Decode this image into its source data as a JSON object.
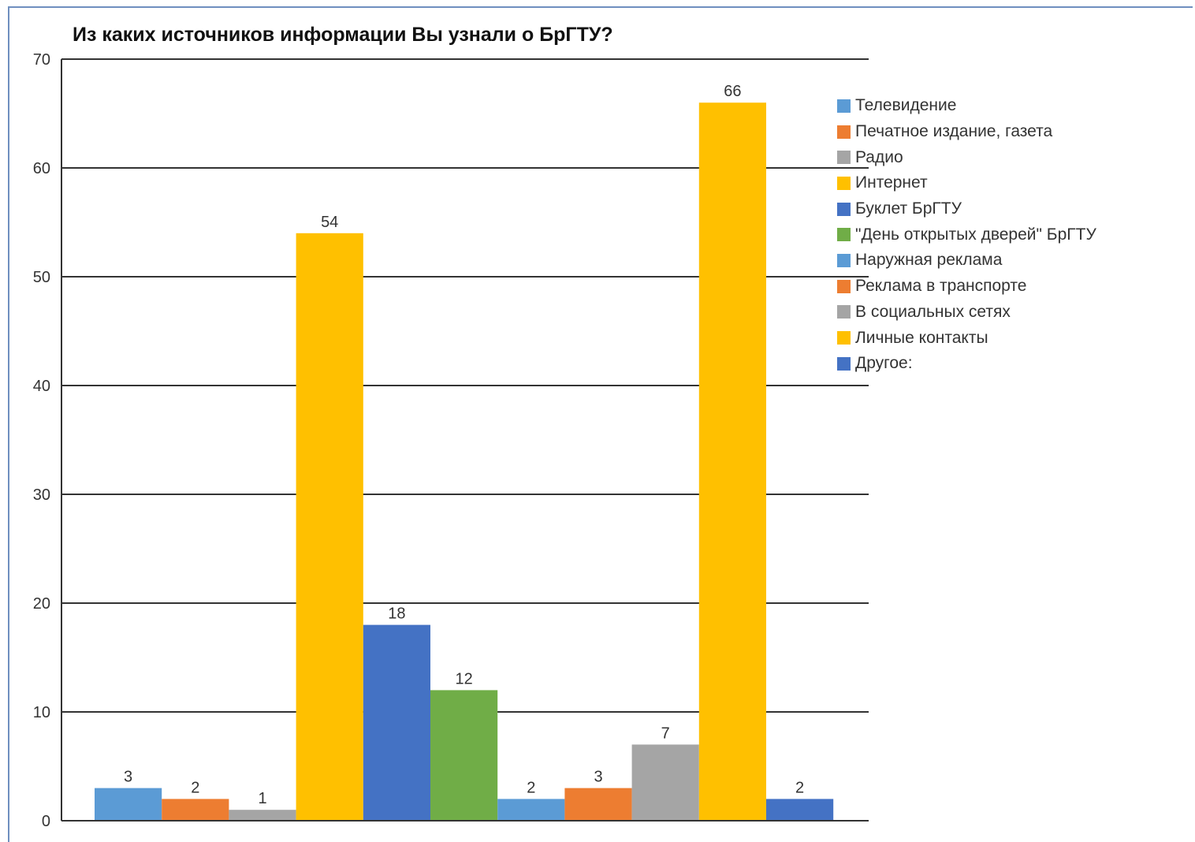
{
  "chart_data": {
    "type": "bar",
    "title": "Из каких источников информации Вы узнали о БрГТУ?",
    "xlabel": "",
    "ylabel": "",
    "ylim": [
      0,
      70
    ],
    "yticks": [
      0,
      10,
      20,
      30,
      40,
      50,
      60,
      70
    ],
    "grid": true,
    "legend_position": "right",
    "series": [
      {
        "name": "Телевидение",
        "value": 3,
        "color": "#5B9BD5"
      },
      {
        "name": "Печатное издание, газета",
        "value": 2,
        "color": "#ED7D31"
      },
      {
        "name": "Радио",
        "value": 1,
        "color": "#A5A5A5"
      },
      {
        "name": "Интернет",
        "value": 54,
        "color": "#FFC000"
      },
      {
        "name": "Буклет БрГТУ",
        "value": 18,
        "color": "#4472C4"
      },
      {
        "name": "\"День открытых дверей\" БрГТУ",
        "value": 12,
        "color": "#70AD47"
      },
      {
        "name": "Наружная реклама",
        "value": 2,
        "color": "#5B9BD5"
      },
      {
        "name": "Реклама в транспорте",
        "value": 3,
        "color": "#ED7D31"
      },
      {
        "name": "В социальных сетях",
        "value": 7,
        "color": "#A5A5A5"
      },
      {
        "name": "Личные контакты",
        "value": 66,
        "color": "#FFC000"
      },
      {
        "name": "Другое:",
        "value": 2,
        "color": "#4472C4"
      }
    ]
  }
}
